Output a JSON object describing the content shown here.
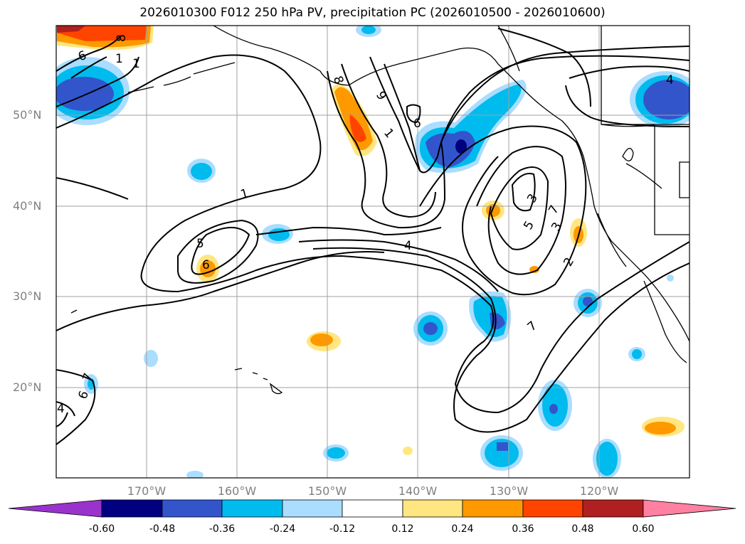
{
  "title": "2026010300 F012 250 hPa PV, precipitation PC (2026010500 - 2026010600)",
  "map": {
    "lon_range": [
      -180,
      -110
    ],
    "lat_range": [
      10,
      60
    ],
    "lat_labels": [
      "50°N",
      "40°N",
      "30°N",
      "20°N"
    ],
    "lon_labels": [
      "170°W",
      "160°W",
      "150°W",
      "140°W",
      "130°W",
      "120°W"
    ],
    "contour_labels": [
      "1",
      "2",
      "3",
      "4",
      "5",
      "6",
      "7",
      "8",
      "9",
      "1",
      "6",
      "4",
      "3",
      "5",
      "7",
      "6",
      "8",
      "1",
      "1",
      "7",
      "6",
      "4",
      "5",
      "1",
      "2",
      "3",
      "5"
    ],
    "colors": {
      "contour": "#000000",
      "grid": "#a0a0a0",
      "coast": "#000000"
    }
  },
  "colorbar": {
    "ticks": [
      "-0.60",
      "-0.48",
      "-0.36",
      "-0.24",
      "-0.12",
      "0.12",
      "0.24",
      "0.36",
      "0.48",
      "0.60"
    ],
    "colors": [
      "#9933cc",
      "#000080",
      "#3355cc",
      "#00bbee",
      "#aaddff",
      "#ffffff",
      "#ffe680",
      "#ff9900",
      "#ff4400",
      "#b02020",
      "#ff80a0"
    ]
  }
}
